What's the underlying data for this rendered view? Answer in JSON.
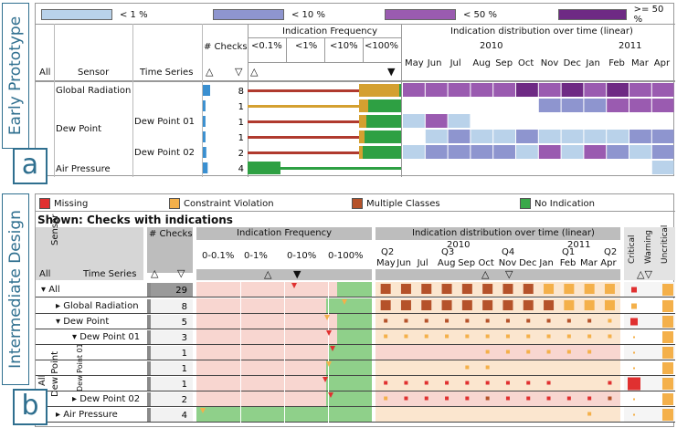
{
  "side_labels": {
    "a_title": "Early Prototype",
    "a_letter": "a",
    "b_title": "Intermediate Design",
    "b_letter": "b"
  },
  "panel_a": {
    "legend": [
      {
        "label": "< 1 %",
        "color": "#b9d2ea"
      },
      {
        "label": "< 10 %",
        "color": "#8e95cf"
      },
      {
        "label": "< 50 %",
        "color": "#9a5bb0"
      },
      {
        "label": ">= 50 %",
        "color": "#6e2a84"
      }
    ],
    "headers": {
      "all": "All",
      "sensor": "Sensor",
      "time_series": "Time Series",
      "checks": "# Checks",
      "freq": "Indication Frequency",
      "freq_cols": [
        "<0.1%",
        "<1%",
        "<10%",
        "<100%"
      ],
      "dist": "Indication distribution over time (linear)",
      "years": [
        "2010",
        "2011"
      ],
      "months": [
        "May",
        "Jun",
        "Jul",
        "Aug",
        "Sep",
        "Oct",
        "Nov",
        "Dec",
        "Jan",
        "Feb",
        "Mar",
        "Apr"
      ]
    },
    "rows": [
      {
        "sensor": "Global Radiation",
        "series": "",
        "count": "8",
        "level": 1.0
      },
      {
        "sensor": "Dew Point",
        "series": "",
        "count": "1",
        "level": 0.15
      },
      {
        "sensor": "",
        "series": "Dew Point 01",
        "count": "1",
        "level": 0.15
      },
      {
        "sensor": "",
        "series": "",
        "count": "1",
        "level": 0.15
      },
      {
        "sensor": "",
        "series": "Dew Point 02",
        "count": "2",
        "level": 0.3
      },
      {
        "sensor": "Air Pressure",
        "series": "",
        "count": "4",
        "level": 0.55
      }
    ],
    "colors": {
      "red": "#b03a2e",
      "gold": "#d4a030",
      "green": "#2ea043",
      "light": "#b9d2ea",
      "mid": "#8e95cf",
      "purple": "#9a5bb0",
      "dark": "#6e2a84"
    }
  },
  "panel_b": {
    "legend": [
      {
        "label": "Missing",
        "color": "#e03030"
      },
      {
        "label": "Constraint Violation",
        "color": "#f4b04a"
      },
      {
        "label": "Multiple Classes",
        "color": "#b5522a"
      },
      {
        "label": "No Indication",
        "color": "#3aa84a"
      }
    ],
    "shown": "Shown: Checks with indications",
    "headers": {
      "all": "All",
      "sensor": "Sensor",
      "time_series": "Time Series",
      "checks": "# Checks",
      "freq": "Indication Frequency",
      "freq_cols": [
        "0-0.1%",
        "0-1%",
        "0-10%",
        "0-100%"
      ],
      "dist": "Indication distribution over time (linear)",
      "years": [
        "2010",
        "2011"
      ],
      "quarters": [
        "Q2",
        "Q3",
        "Q4",
        "Q1",
        "Q2"
      ],
      "months": [
        "May",
        "Jun",
        "Jul",
        "Aug",
        "Sep",
        "Oct",
        "Nov",
        "Dec",
        "Jan",
        "Feb",
        "Mar",
        "Apr"
      ],
      "severity": [
        "Critical",
        "Warning",
        "Uncritical"
      ]
    },
    "rows": [
      {
        "label": "All",
        "count": "29"
      },
      {
        "label": "Global Radiation",
        "count": "8"
      },
      {
        "label": "Dew Point",
        "count": "5"
      },
      {
        "label": "Dew Point 01",
        "count": "3"
      },
      {
        "label": "",
        "count": "1"
      },
      {
        "label": "",
        "count": "1"
      },
      {
        "label": "",
        "count": "1"
      },
      {
        "label": "Dew Point 02",
        "count": "2"
      },
      {
        "label": "Air Pressure",
        "count": "4"
      }
    ],
    "vertical_labels": {
      "all": "All",
      "dew_point": "Dew Point",
      "dew_point_01": "Dew Point 01"
    },
    "colors": {
      "pink": "#f8d6d0",
      "peach": "#fbe6cf",
      "green": "#8fd08a",
      "brown": "#b5522a",
      "orange": "#f4b04a",
      "red": "#e03030",
      "gray": "#c8c8c8"
    }
  }
}
